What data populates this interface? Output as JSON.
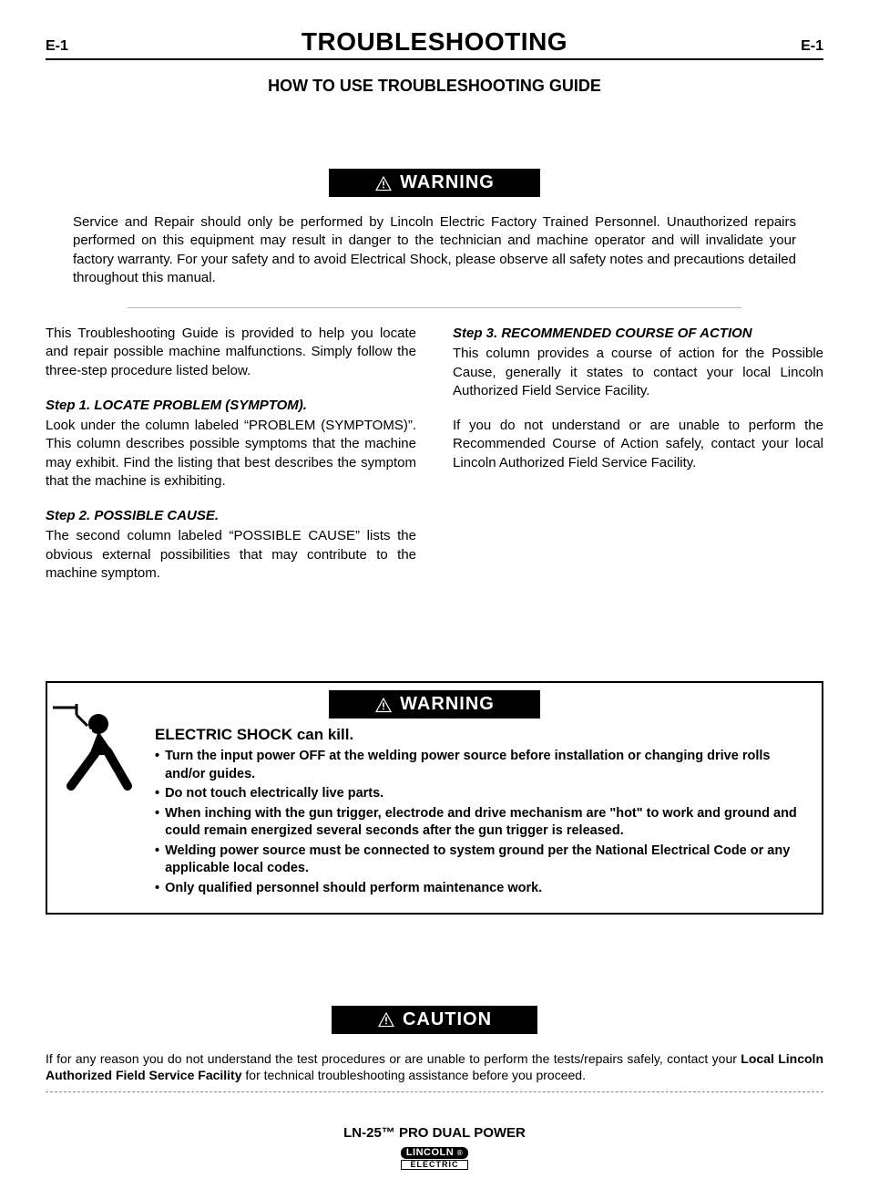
{
  "header": {
    "left": "E-1",
    "title": "TROUBLESHOOTING",
    "right": "E-1"
  },
  "subtitle": "HOW TO USE TROUBLESHOOTING GUIDE",
  "warning1": {
    "label": "WARNING",
    "text": "Service and Repair should only be performed by Lincoln Electric Factory Trained Personnel. Unauthorized repairs performed on this equipment may result in danger to the technician and machine operator and will invalidate your factory warranty.  For your safety and to avoid Electrical Shock, please observe all safety notes and precautions detailed throughout this manual."
  },
  "guide_intro": "This Troubleshooting Guide is provided to help you locate and repair possible machine malfunctions. Simply follow the three-step procedure listed below.",
  "step1": {
    "head": "Step 1. LOCATE PROBLEM (SYMPTOM).",
    "body": "Look under the column labeled “PROBLEM (SYMPTOMS)”.  This column describes possible symptoms that the machine may exhibit.  Find the listing that best describes the symptom that the machine is exhibiting."
  },
  "step2": {
    "head": "Step 2. POSSIBLE CAUSE.",
    "body": "The second column labeled “POSSIBLE CAUSE” lists the obvious external possibilities that may contribute to the machine symptom."
  },
  "step3": {
    "head": "Step 3. RECOMMENDED COURSE OF ACTION",
    "body": "This column provides a course of action for the Possible Cause, generally it states to contact your local Lincoln Authorized Field Service Facility."
  },
  "step3_note": "If you do not understand or are unable to perform the Recommended Course of Action safely, contact your local Lincoln Authorized Field Service Facility.",
  "warning2": {
    "label": "WARNING",
    "heading": "ELECTRIC  SHOCK can kill.",
    "bullets": [
      "Turn the input power OFF at the welding power source before installation or changing drive rolls and/or guides.",
      "Do not touch electrically live parts.",
      "When inching with the gun trigger, electrode and drive mechanism are \"hot\" to work and ground and could remain energized several seconds after the gun trigger is released.",
      "Welding power source must be connected to system ground per the National Electrical Code or any applicable local codes.",
      "Only qualified personnel should perform maintenance work."
    ]
  },
  "caution": {
    "label": "CAUTION",
    "text_pre": "If for any reason you do not understand the test procedures or are unable to perform the tests/repairs safely, contact your ",
    "text_bold": "Local  Lincoln Authorized Field Service Facility",
    "text_post": " for technical troubleshooting assistance before you proceed."
  },
  "footer": {
    "product": "LN-25™ PRO DUAL POWER",
    "logo_top": "LINCOLN",
    "logo_bot": "ELECTRIC"
  },
  "style": {
    "banner_bg": "#000000",
    "banner_fg": "#ffffff",
    "hr_color": "#b8b8b8"
  }
}
